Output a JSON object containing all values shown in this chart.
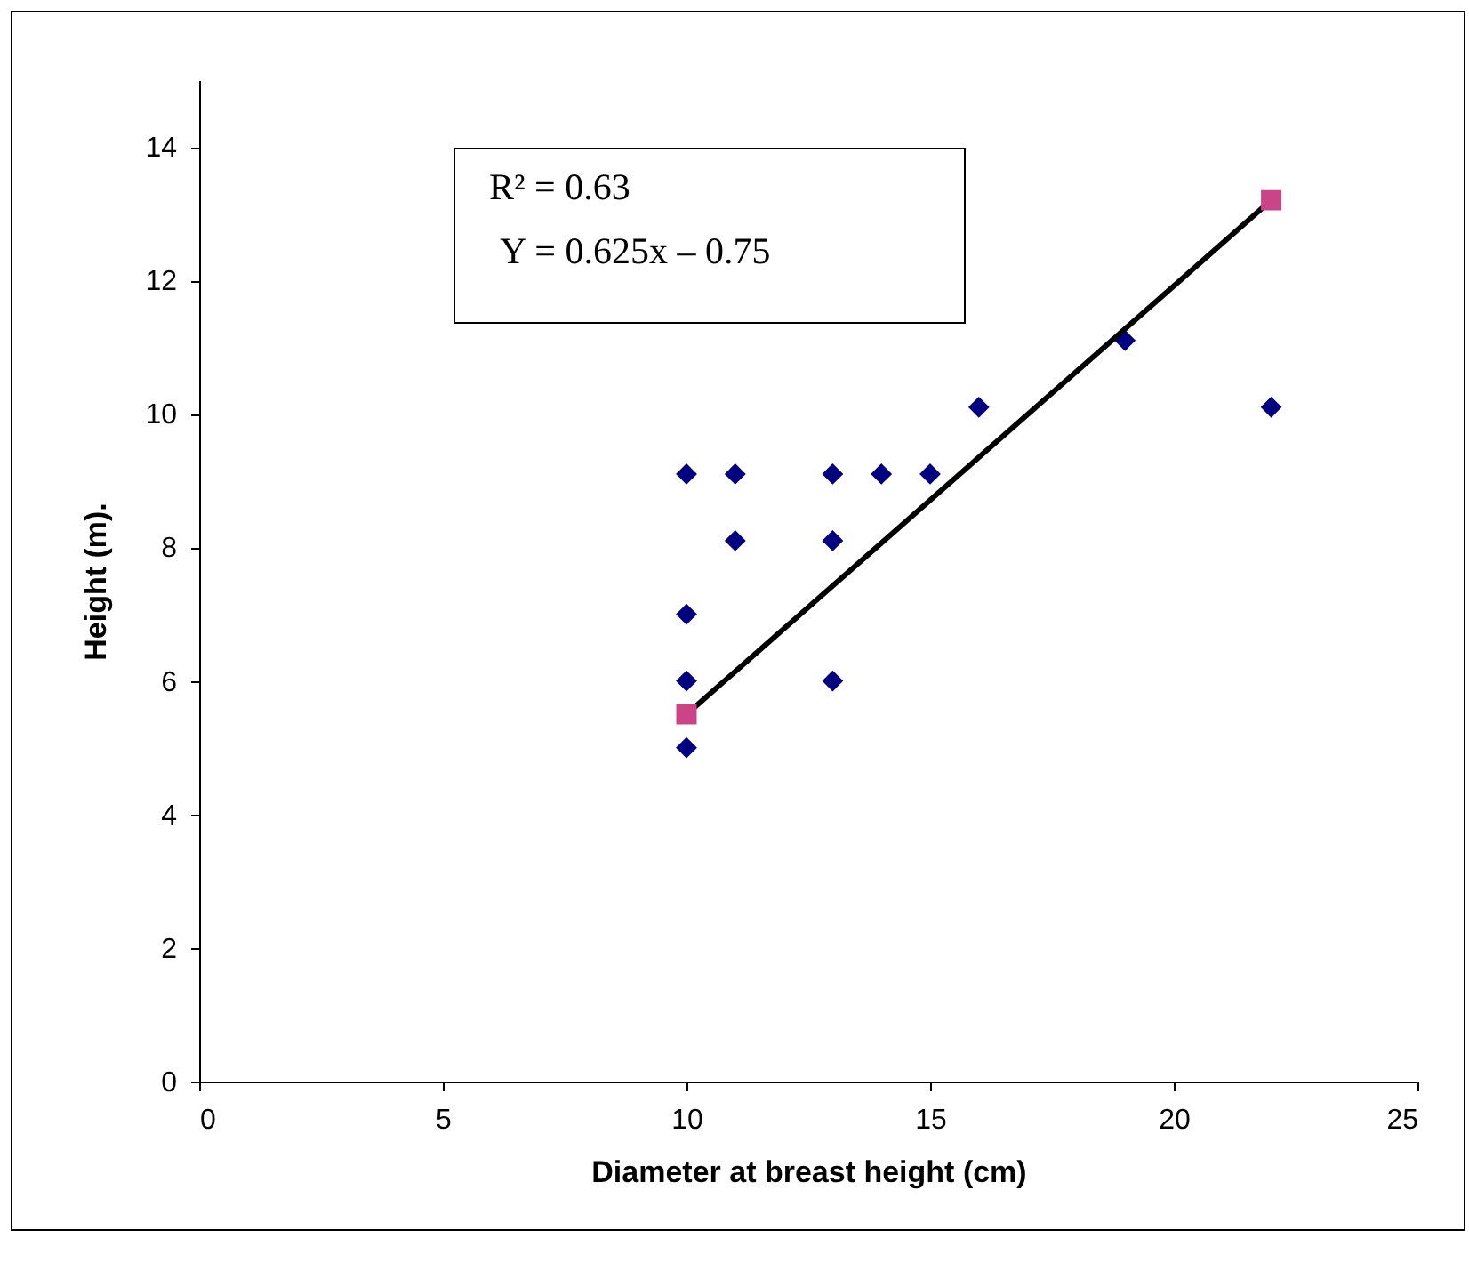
{
  "chart_data": {
    "type": "scatter",
    "xlabel": "Diameter at breast height (cm)",
    "ylabel": "Height (m).",
    "xlim": [
      0,
      25
    ],
    "xticks": [
      0,
      5,
      10,
      15,
      20,
      25
    ],
    "ylim": [
      0,
      15
    ],
    "yticks": [
      0,
      2,
      4,
      6,
      8,
      10,
      12,
      14
    ],
    "grid": false,
    "legend": false,
    "annotations": [
      "R² = 0.63",
      "Y = 0.625x – 0.75"
    ],
    "series": [
      {
        "marker": "diamond",
        "color": "#000080",
        "x": [
          10,
          10,
          10,
          10,
          11,
          11,
          13,
          13,
          13,
          14,
          15,
          16,
          19,
          22
        ],
        "values": [
          9.1,
          7,
          6,
          5,
          9.1,
          8.1,
          9.1,
          8.1,
          6,
          9.1,
          9.1,
          10.1,
          11.1,
          10.1
        ]
      },
      {
        "type": "line",
        "marker": "none",
        "color": "#000000",
        "x": [
          10,
          22
        ],
        "values": [
          5.5,
          13.2
        ]
      },
      {
        "marker": "square",
        "color": "#cc4488",
        "x": [
          10,
          22
        ],
        "values": [
          5.5,
          13.2
        ]
      }
    ]
  }
}
